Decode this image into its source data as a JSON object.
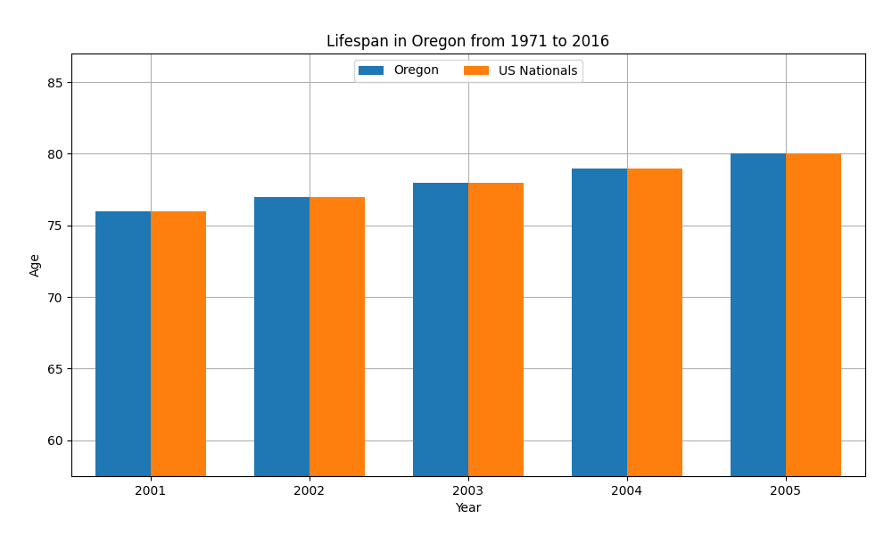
{
  "chart_data": {
    "type": "bar",
    "title": "Lifespan in Oregon from 1971 to 2016",
    "xlabel": "Year",
    "ylabel": "Age",
    "categories": [
      "2001",
      "2002",
      "2003",
      "2004",
      "2005"
    ],
    "series": [
      {
        "name": "Oregon",
        "values": [
          76,
          77,
          78,
          79,
          80
        ]
      },
      {
        "name": "US Nationals",
        "values": [
          76,
          77,
          78,
          79,
          80
        ]
      }
    ],
    "ylim": [
      57.5,
      87
    ],
    "yticks": [
      60,
      65,
      70,
      75,
      80,
      85
    ],
    "grid": true,
    "legend": "upper center"
  }
}
